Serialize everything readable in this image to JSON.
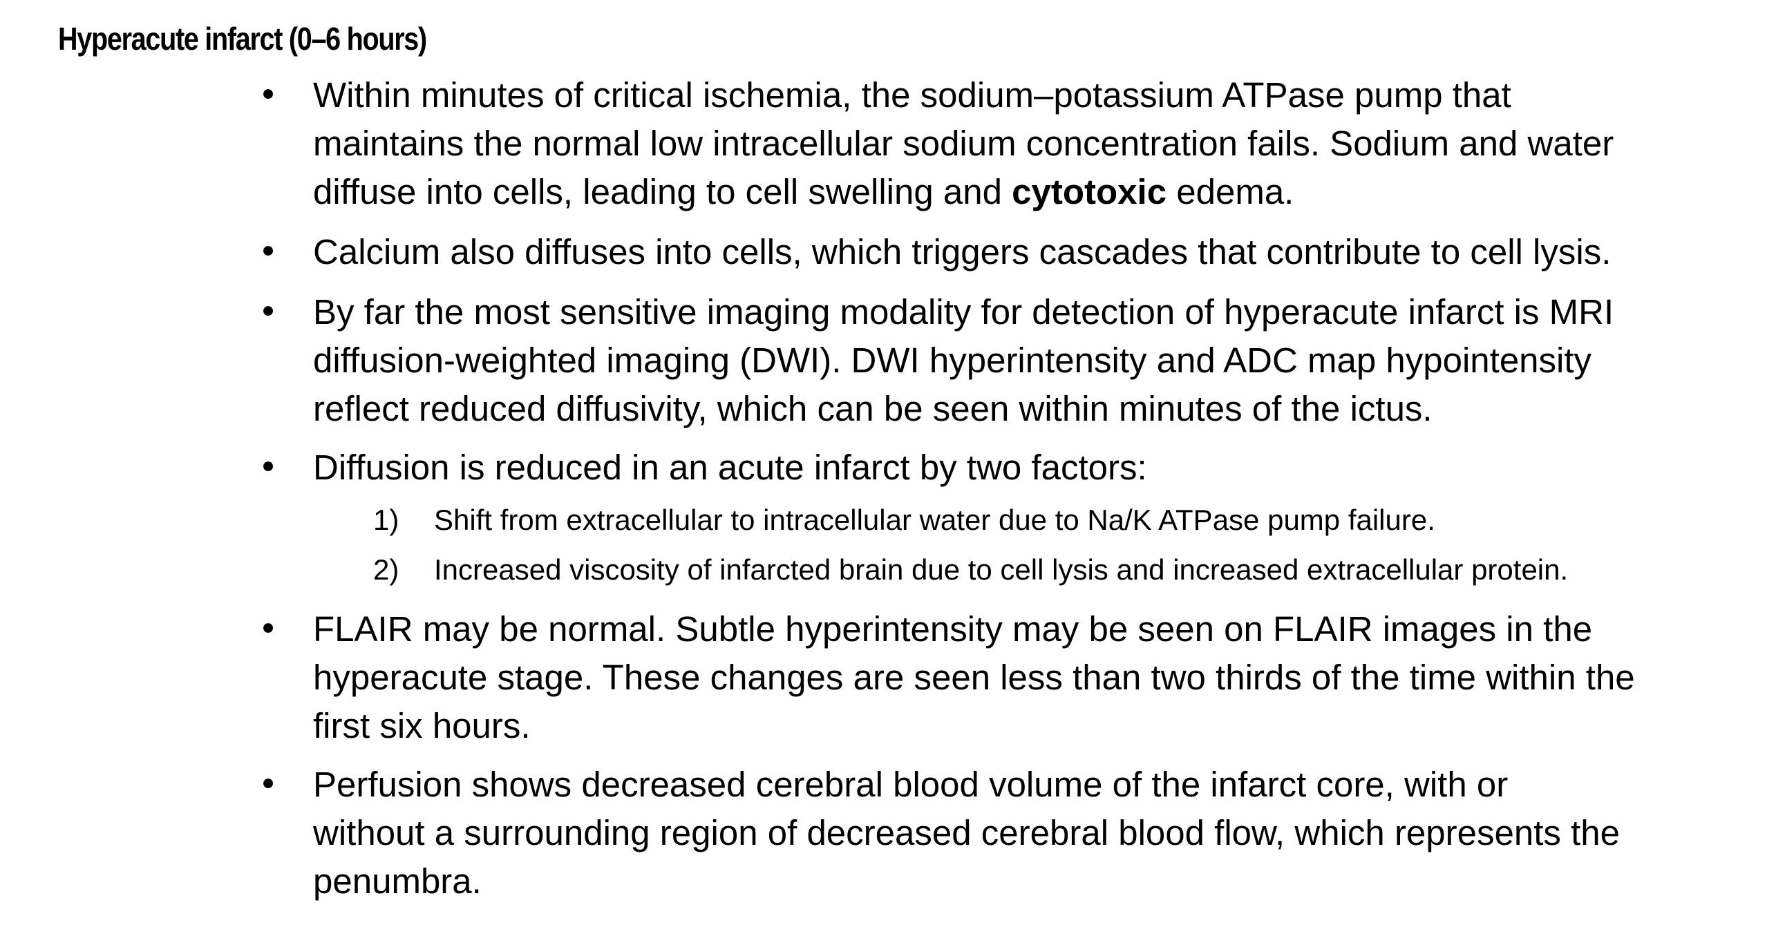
{
  "heading": "Hyperacute infarct (0–6 hours)",
  "bullet_glyph": "•",
  "bullets": [
    {
      "lines": [
        "Within minutes of critical ischemia, the sodium–potassium ATPase pump that",
        "maintains the normal low intracellular sodium concentration fails. Sodium and water"
      ],
      "line3_before": "diffuse into cells, leading to cell swelling and ",
      "line3_bold": "cytotoxic",
      "line3_after": " edema."
    },
    {
      "lines": [
        "Calcium also diffuses into cells, which triggers cascades that contribute to cell lysis."
      ]
    },
    {
      "lines": [
        "By far the most sensitive imaging modality for detection of hyperacute infarct is MRI",
        "diffusion-weighted imaging (DWI). DWI hyperintensity and ADC map hypointensity",
        "reflect reduced diffusivity, which can be seen within minutes of the ictus."
      ]
    },
    {
      "lines": [
        "Diffusion is reduced in an acute infarct by two factors:"
      ],
      "subitems": [
        {
          "number": "1)",
          "text": "Shift from extracellular to intracellular water due to Na/K ATPase pump failure."
        },
        {
          "number": "2)",
          "text": "Increased viscosity of infarcted brain due to cell lysis and increased extracellular protein."
        }
      ]
    },
    {
      "lines": [
        "FLAIR may be normal. Subtle hyperintensity may be seen on FLAIR images in the",
        "hyperacute stage. These changes are seen less than two thirds of the time within the",
        "first six hours."
      ]
    },
    {
      "lines": [
        "Perfusion shows decreased cerebral blood volume of the infarct core, with or",
        "without a surrounding region of decreased cerebral blood flow, which represents the",
        "penumbra."
      ]
    }
  ]
}
